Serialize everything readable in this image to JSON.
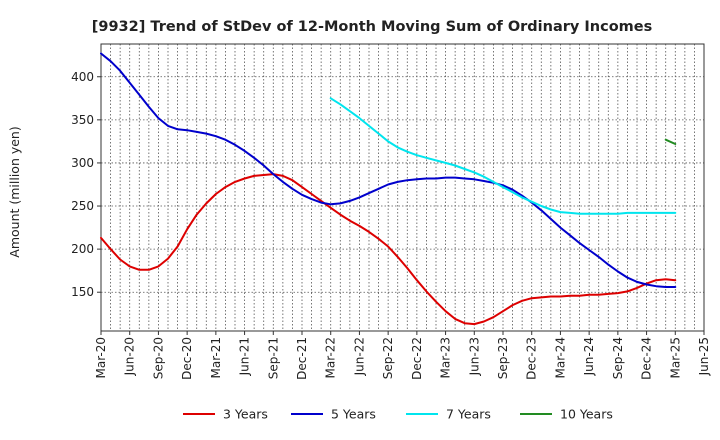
{
  "chart_data": {
    "type": "line",
    "title": "[9932]  Trend of StDev of 12-Month Moving Sum of Ordinary Incomes",
    "ylabel": "Amount (million yen)",
    "xlabel": "",
    "ylim": [
      105,
      438
    ],
    "yticks": [
      150,
      200,
      250,
      300,
      350,
      400
    ],
    "x_tick_labels": [
      "Mar-20",
      "Jun-20",
      "Sep-20",
      "Dec-20",
      "Mar-21",
      "Jun-21",
      "Sep-21",
      "Dec-21",
      "Mar-22",
      "Jun-22",
      "Sep-22",
      "Dec-22",
      "Mar-23",
      "Jun-23",
      "Sep-23",
      "Dec-23",
      "Mar-24",
      "Jun-24",
      "Sep-24",
      "Dec-24",
      "Mar-25",
      "Jun-25"
    ],
    "x_unit": "month index from Mar-20",
    "grid": true,
    "legend_position": "bottom",
    "series": [
      {
        "name": "3 Years",
        "color": "#dd0000",
        "points": [
          [
            0,
            213
          ],
          [
            1,
            200
          ],
          [
            2,
            188
          ],
          [
            3,
            180
          ],
          [
            4,
            176
          ],
          [
            5,
            176
          ],
          [
            6,
            180
          ],
          [
            7,
            189
          ],
          [
            8,
            203
          ],
          [
            9,
            223
          ],
          [
            10,
            240
          ],
          [
            11,
            253
          ],
          [
            12,
            264
          ],
          [
            13,
            272
          ],
          [
            14,
            278
          ],
          [
            15,
            282
          ],
          [
            16,
            285
          ],
          [
            17,
            286
          ],
          [
            18,
            287
          ],
          [
            19,
            285
          ],
          [
            20,
            280
          ],
          [
            21,
            272
          ],
          [
            22,
            264
          ],
          [
            23,
            256
          ],
          [
            24,
            248
          ],
          [
            25,
            240
          ],
          [
            26,
            233
          ],
          [
            27,
            227
          ],
          [
            28,
            220
          ],
          [
            29,
            212
          ],
          [
            30,
            203
          ],
          [
            31,
            191
          ],
          [
            32,
            178
          ],
          [
            33,
            164
          ],
          [
            34,
            151
          ],
          [
            35,
            139
          ],
          [
            36,
            128
          ],
          [
            37,
            119
          ],
          [
            38,
            114
          ],
          [
            39,
            113
          ],
          [
            40,
            116
          ],
          [
            41,
            121
          ],
          [
            42,
            128
          ],
          [
            43,
            135
          ],
          [
            44,
            140
          ],
          [
            45,
            143
          ],
          [
            46,
            144
          ],
          [
            47,
            145
          ],
          [
            48,
            145
          ],
          [
            49,
            146
          ],
          [
            50,
            146
          ],
          [
            51,
            147
          ],
          [
            52,
            147
          ],
          [
            53,
            148
          ],
          [
            54,
            149
          ],
          [
            55,
            151
          ],
          [
            56,
            155
          ],
          [
            57,
            160
          ],
          [
            58,
            164
          ],
          [
            59,
            165
          ],
          [
            60,
            164
          ]
        ]
      },
      {
        "name": "5 Years",
        "color": "#0000cc",
        "points": [
          [
            0,
            427
          ],
          [
            1,
            418
          ],
          [
            2,
            407
          ],
          [
            3,
            393
          ],
          [
            4,
            379
          ],
          [
            5,
            365
          ],
          [
            6,
            352
          ],
          [
            7,
            343
          ],
          [
            8,
            339
          ],
          [
            9,
            338
          ],
          [
            10,
            336
          ],
          [
            11,
            334
          ],
          [
            12,
            331
          ],
          [
            13,
            327
          ],
          [
            14,
            321
          ],
          [
            15,
            314
          ],
          [
            16,
            306
          ],
          [
            17,
            297
          ],
          [
            18,
            287
          ],
          [
            19,
            278
          ],
          [
            20,
            270
          ],
          [
            21,
            263
          ],
          [
            22,
            258
          ],
          [
            23,
            254
          ],
          [
            24,
            252
          ],
          [
            25,
            253
          ],
          [
            26,
            256
          ],
          [
            27,
            260
          ],
          [
            28,
            265
          ],
          [
            29,
            270
          ],
          [
            30,
            275
          ],
          [
            31,
            278
          ],
          [
            32,
            280
          ],
          [
            33,
            281
          ],
          [
            34,
            282
          ],
          [
            35,
            282
          ],
          [
            36,
            283
          ],
          [
            37,
            283
          ],
          [
            38,
            282
          ],
          [
            39,
            281
          ],
          [
            40,
            279
          ],
          [
            41,
            277
          ],
          [
            42,
            274
          ],
          [
            43,
            269
          ],
          [
            44,
            262
          ],
          [
            45,
            254
          ],
          [
            46,
            245
          ],
          [
            47,
            235
          ],
          [
            48,
            225
          ],
          [
            49,
            216
          ],
          [
            50,
            207
          ],
          [
            51,
            199
          ],
          [
            52,
            191
          ],
          [
            53,
            182
          ],
          [
            54,
            174
          ],
          [
            55,
            167
          ],
          [
            56,
            162
          ],
          [
            57,
            159
          ],
          [
            58,
            157
          ],
          [
            59,
            156
          ],
          [
            60,
            156
          ]
        ]
      },
      {
        "name": "7 Years",
        "color": "#00e5ee",
        "points": [
          [
            24,
            375
          ],
          [
            25,
            368
          ],
          [
            26,
            360
          ],
          [
            27,
            352
          ],
          [
            28,
            343
          ],
          [
            29,
            334
          ],
          [
            30,
            325
          ],
          [
            31,
            318
          ],
          [
            32,
            313
          ],
          [
            33,
            309
          ],
          [
            34,
            306
          ],
          [
            35,
            303
          ],
          [
            36,
            300
          ],
          [
            37,
            297
          ],
          [
            38,
            293
          ],
          [
            39,
            289
          ],
          [
            40,
            284
          ],
          [
            41,
            278
          ],
          [
            42,
            272
          ],
          [
            43,
            266
          ],
          [
            44,
            260
          ],
          [
            45,
            255
          ],
          [
            46,
            250
          ],
          [
            47,
            246
          ],
          [
            48,
            243
          ],
          [
            49,
            242
          ],
          [
            50,
            241
          ],
          [
            51,
            241
          ],
          [
            52,
            241
          ],
          [
            53,
            241
          ],
          [
            54,
            241
          ],
          [
            55,
            242
          ],
          [
            56,
            242
          ],
          [
            57,
            242
          ],
          [
            58,
            242
          ],
          [
            59,
            242
          ],
          [
            60,
            242
          ]
        ]
      },
      {
        "name": "10 Years",
        "color": "#228b22",
        "points": [
          [
            59,
            327
          ],
          [
            60,
            322
          ]
        ]
      }
    ]
  }
}
